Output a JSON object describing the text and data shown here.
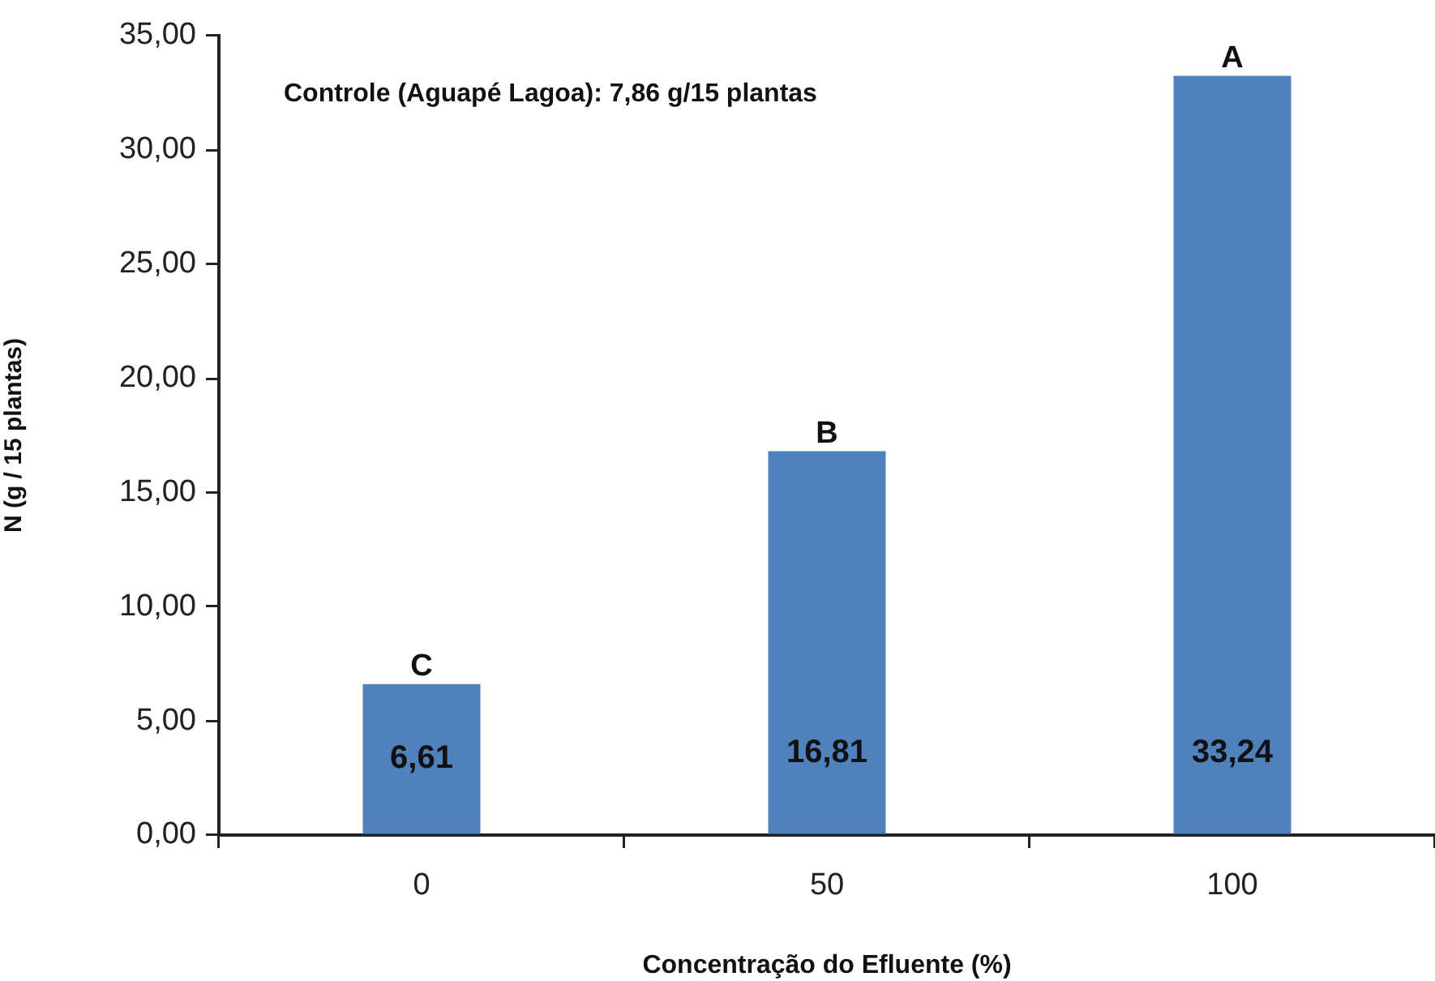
{
  "chart_data": {
    "type": "bar",
    "xlabel": "Concentração do Efluente (%)",
    "ylabel": "N (g / 15 plantas)",
    "categories": [
      "0",
      "50",
      "100"
    ],
    "values": [
      6.61,
      16.81,
      33.24
    ],
    "color": "#4f81bd",
    "value_labels": [
      "6,61",
      "16,81",
      "33,24"
    ],
    "ylim": [
      0,
      35
    ],
    "yticks": [
      {
        "value": 0,
        "label": "0,00"
      },
      {
        "value": 5,
        "label": "5,00"
      },
      {
        "value": 10,
        "label": "10,00"
      },
      {
        "value": 15,
        "label": "15,00"
      },
      {
        "value": 20,
        "label": "20,00"
      },
      {
        "value": 25,
        "label": "25,00"
      },
      {
        "value": 30,
        "label": "30,00"
      },
      {
        "value": 35,
        "label": "35,00"
      }
    ],
    "grid": false,
    "legend": false,
    "annotations": [
      "Controle (Aguapé Lagoa): 7,86 g/15 plantas",
      {
        "text": "C",
        "x": "0",
        "y": 6.61
      },
      {
        "text": "B",
        "x": "50",
        "y": 16.81
      },
      {
        "text": "A",
        "x": "100",
        "y": 33.24
      }
    ]
  }
}
